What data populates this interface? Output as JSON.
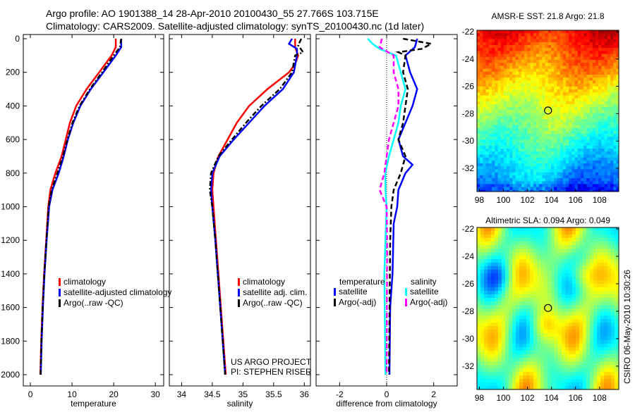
{
  "header": {
    "line1": "Argo profile: AO 1901388_14 28-Apr-2010 20100430_55 27.766S 103.715E",
    "line2": "Climatology: CARS2009. Satellite-adjusted climatology: synTS_20100430.nc (1d later)"
  },
  "side_stamp": "CSIRO 06-May-2010 10:30:26",
  "chart_data": [
    {
      "id": "temperature",
      "type": "line",
      "xlabel": "temperature",
      "ylabel": "",
      "xlim": [
        -1.7,
        32
      ],
      "ylim": [
        2000,
        0
      ],
      "xticks": [
        "0",
        "10",
        "20",
        "30"
      ],
      "yticks": [
        "0",
        "200",
        "400",
        "600",
        "800",
        "1000",
        "1200",
        "1400",
        "1600",
        "1800",
        "2000"
      ],
      "legend": [
        "climatology",
        "satellite-adjusted climatology",
        "Argo(..raw -QC)"
      ],
      "series": [
        {
          "name": "climatology",
          "color": "#ff0000",
          "style": "solid",
          "depth": [
            0,
            50,
            100,
            200,
            300,
            400,
            500,
            600,
            700,
            800,
            900,
            1000,
            1200,
            1400,
            1600,
            1800,
            2000
          ],
          "values": [
            20.5,
            20.5,
            19.5,
            16.5,
            13.5,
            11,
            9.5,
            8.5,
            7.5,
            6,
            4.8,
            4.3,
            3.8,
            3.3,
            2.9,
            2.6,
            2.4
          ]
        },
        {
          "name": "satellite-adjusted climatology",
          "color": "#0000ff",
          "style": "solid",
          "depth": [
            0,
            50,
            100,
            200,
            300,
            400,
            500,
            600,
            700,
            800,
            900,
            1000,
            1200,
            1400,
            1600,
            1800,
            2000
          ],
          "values": [
            21.8,
            21.8,
            20.5,
            17.5,
            14.5,
            12,
            10.3,
            9,
            8,
            6.8,
            5.3,
            4.5,
            3.9,
            3.4,
            3,
            2.7,
            2.5
          ]
        },
        {
          "name": "Argo(..raw -QC)",
          "color": "#000000",
          "style": "dashdot",
          "depth": [
            0,
            50,
            100,
            200,
            300,
            400,
            500,
            600,
            700,
            800,
            900,
            1000,
            1200,
            1400,
            1600,
            1800,
            2000
          ],
          "values": [
            21.8,
            21.5,
            20,
            17.2,
            14.3,
            11.8,
            10.1,
            8.9,
            7.8,
            6.5,
            5.1,
            4.4,
            3.85,
            3.35,
            2.95,
            2.65,
            2.45
          ]
        }
      ]
    },
    {
      "id": "salinity",
      "type": "line",
      "xlabel": "salinity",
      "xlim": [
        33.8,
        36.1
      ],
      "ylim": [
        2000,
        0
      ],
      "xticks": [
        "34",
        "34.5",
        "35",
        "35.5",
        "36"
      ],
      "legend": [
        "climatology",
        "satellite adj. clim.",
        "Argo(..raw -QC)"
      ],
      "annotation": [
        "US ARGO PROJECT",
        "PI: STEPHEN RISER"
      ],
      "series": [
        {
          "name": "climatology",
          "color": "#ff0000",
          "style": "solid",
          "depth": [
            0,
            50,
            100,
            150,
            200,
            300,
            400,
            500,
            600,
            700,
            800,
            900,
            1000,
            1200,
            1400,
            1600,
            1800,
            2000
          ],
          "values": [
            35.85,
            35.85,
            35.9,
            35.85,
            35.75,
            35.4,
            35.1,
            34.9,
            34.75,
            34.6,
            34.52,
            34.5,
            34.52,
            34.56,
            34.6,
            34.64,
            34.68,
            34.72
          ]
        },
        {
          "name": "satellite adj. clim.",
          "color": "#0000ff",
          "style": "solid",
          "depth": [
            0,
            30,
            60,
            100,
            200,
            300,
            400,
            500,
            600,
            700,
            800,
            900,
            1000,
            1200,
            1400,
            1600,
            1800,
            2000
          ],
          "values": [
            35.8,
            35.75,
            35.88,
            35.88,
            35.83,
            35.65,
            35.35,
            35.1,
            34.85,
            34.62,
            34.5,
            34.48,
            34.5,
            34.55,
            34.59,
            34.63,
            34.67,
            34.71
          ]
        },
        {
          "name": "Argo(..raw -QC)",
          "color": "#000000",
          "style": "dashdot",
          "depth": [
            0,
            40,
            80,
            100,
            200,
            300,
            400,
            500,
            600,
            700,
            800,
            900,
            1000,
            1200,
            1400,
            1600,
            1800,
            2000
          ],
          "values": [
            35.95,
            35.9,
            35.98,
            35.85,
            35.8,
            35.6,
            35.3,
            35.05,
            34.82,
            34.6,
            34.48,
            34.46,
            34.5,
            34.55,
            34.59,
            34.63,
            34.67,
            34.71
          ]
        }
      ]
    },
    {
      "id": "difference",
      "type": "line",
      "xlabel": "difference from climatology",
      "xlim": [
        -3,
        3
      ],
      "ylim": [
        2000,
        0
      ],
      "xticks": [
        "-2",
        "0",
        "2"
      ],
      "legend_groups": [
        {
          "title": "temperature",
          "items": [
            "satellite",
            "Argo(-adj)"
          ]
        },
        {
          "title": "salinity",
          "items": [
            "satellite",
            "Argo(-adj)"
          ]
        }
      ],
      "series": [
        {
          "name": "temperature satellite",
          "color": "#0000ff",
          "style": "solid",
          "depth": [
            0,
            50,
            100,
            200,
            300,
            400,
            500,
            600,
            700,
            750,
            800,
            900,
            1000,
            1100,
            1400,
            1600,
            2000
          ],
          "values": [
            1.3,
            1.2,
            0.8,
            1.0,
            1.3,
            1.1,
            0.8,
            0.5,
            0.7,
            1.1,
            0.8,
            0.5,
            0.45,
            0.3,
            0.25,
            0.15,
            0.12
          ]
        },
        {
          "name": "temperature Argo(-adj)",
          "color": "#000000",
          "style": "dashed",
          "depth": [
            0,
            30,
            60,
            80,
            100,
            200,
            300,
            400,
            500,
            600,
            700,
            800,
            900,
            1000,
            1200,
            2000
          ],
          "values": [
            0.7,
            1.9,
            1.5,
            0.5,
            0.8,
            0.7,
            0.9,
            0.8,
            0.7,
            0.5,
            0.8,
            0.6,
            0.3,
            0.2,
            0.15,
            0.1
          ]
        },
        {
          "name": "salinity satellite",
          "color": "#00ffff",
          "style": "solid",
          "depth": [
            0,
            30,
            60,
            100,
            200,
            300,
            400,
            500,
            600,
            700,
            800,
            900,
            1000,
            1400,
            2000
          ],
          "values": [
            -0.8,
            -0.6,
            -0.3,
            0.4,
            0.6,
            0.8,
            0.6,
            0.5,
            0.3,
            0.1,
            -0.05,
            -0.05,
            0.0,
            -0.1,
            -0.05
          ]
        },
        {
          "name": "salinity Argo(-adj)",
          "color": "#ff00ff",
          "style": "dashed",
          "depth": [
            0,
            50,
            100,
            200,
            300,
            400,
            500,
            600,
            800,
            900,
            1000,
            1200,
            2000
          ],
          "values": [
            -0.2,
            -0.3,
            0.3,
            0.3,
            0.5,
            0.5,
            0.3,
            0.1,
            -0.1,
            -0.3,
            0,
            0.02,
            0
          ]
        }
      ]
    },
    {
      "id": "sst-map",
      "type": "heatmap",
      "title": "AMSR-E SST: 21.8 Argo: 21.8",
      "xlim": [
        97.8,
        109.6
      ],
      "ylim": [
        -21.9,
        -33.7
      ],
      "xticks": [
        "98",
        "100",
        "102",
        "104",
        "106",
        "108"
      ],
      "yticks": [
        "-22",
        "-24",
        "-26",
        "-28",
        "-30",
        "-32"
      ],
      "marker": {
        "lon": 103.715,
        "lat": -27.766
      }
    },
    {
      "id": "sla-map",
      "type": "heatmap",
      "title": "Altimetric SLA: 0.094 Argo: 0.049",
      "xlim": [
        97.8,
        109.6
      ],
      "ylim": [
        -21.9,
        -33.7
      ],
      "xticks": [
        "98",
        "100",
        "102",
        "104",
        "106",
        "108"
      ],
      "yticks": [
        "-22",
        "-24",
        "-26",
        "-28",
        "-30",
        "-32"
      ],
      "marker": {
        "lon": 103.715,
        "lat": -27.766
      }
    }
  ]
}
